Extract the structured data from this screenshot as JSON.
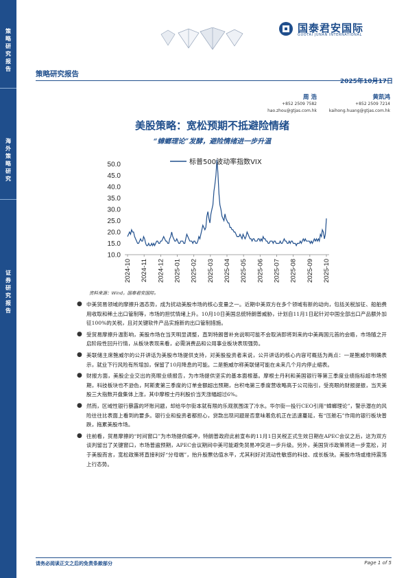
{
  "sidebar": {
    "sections": [
      "策略研究报告",
      "海外策略研究",
      "证券研究报告"
    ]
  },
  "logo": {
    "name_cn": "国泰君安国际",
    "name_en": "GUOTAI JUNAN INTERNATIONAL",
    "brand_color": "#1f4e8c"
  },
  "header": {
    "report_type": "策略研究报告",
    "date": "2025年10月17日"
  },
  "authors": [
    {
      "name": "周 浩",
      "phone": "+852 2509 7582",
      "email": "hao.zhou@gtjas.com.hk"
    },
    {
      "name": "黄凯鸿",
      "phone": "+852 2509 7214",
      "email": "kaihong.huang@gtjas.com.hk"
    }
  ],
  "title": "美股策略：宽松预期不抵避险情绪",
  "subtitle": "“蟑螂理论”发酵，避险情绪进一步升温",
  "chart_data": {
    "type": "line",
    "series": [
      {
        "name": "标普500波动率指数VIX",
        "color": "#1f4e8c",
        "values": [
          18,
          19,
          20,
          19,
          21,
          20,
          20,
          18,
          17,
          16,
          15,
          15,
          16,
          17,
          16,
          16,
          18,
          17,
          15,
          14,
          14,
          15,
          14,
          14,
          15,
          14,
          15,
          14,
          15,
          16,
          16,
          15,
          15,
          16,
          16,
          17,
          18,
          17,
          16,
          16,
          15,
          15,
          17,
          18,
          20,
          18,
          17,
          16,
          16,
          17,
          16,
          15,
          15,
          16,
          16,
          16,
          15,
          15,
          17,
          19,
          18,
          17,
          16,
          16,
          16,
          15,
          16,
          16,
          15,
          15,
          16,
          18,
          17,
          19,
          21,
          23,
          22,
          21,
          22,
          27,
          29,
          26,
          24,
          28,
          30,
          32,
          38,
          41,
          45,
          52,
          46,
          37,
          32,
          30,
          27,
          26,
          25,
          28,
          26,
          25,
          24,
          24,
          22,
          22,
          21,
          21,
          20,
          20,
          19,
          18,
          18,
          18,
          19,
          18,
          17,
          19,
          18,
          17,
          18,
          20,
          19,
          18,
          17,
          17,
          16,
          17,
          17,
          16,
          16,
          16,
          17,
          17,
          16,
          17,
          16,
          18,
          17,
          17,
          16,
          16,
          15,
          15,
          16,
          16,
          16,
          15,
          16,
          16,
          15,
          15,
          15,
          15,
          16,
          15,
          15,
          16,
          17,
          16,
          16,
          15,
          15,
          16,
          15,
          16,
          16,
          15,
          15,
          15,
          14,
          15,
          15,
          15,
          16,
          15,
          16,
          17,
          16,
          17,
          16,
          16,
          16,
          16,
          15,
          16,
          15,
          16,
          17,
          16,
          17,
          16,
          17,
          16,
          19,
          18,
          21,
          20,
          17,
          19,
          26
        ]
      }
    ],
    "x_ticks": [
      "2024-10",
      "2024-11",
      "2024-12",
      "2025-01",
      "2025-02",
      "2025-03",
      "2025-04",
      "2025-05",
      "2025-06",
      "2025-07",
      "2025-08",
      "2025-09",
      "2025-10"
    ],
    "y_ticks": [
      "50.0",
      "45.0",
      "40.0",
      "35.0",
      "30.0",
      "25.0",
      "20.0",
      "15.0",
      "10.0"
    ],
    "ylim": [
      10,
      50
    ],
    "legend": "top"
  },
  "source": "资料来源：Wind，国泰君安国际。",
  "bullets": [
    "中美贸易领域的摩擦升温态势，成为扰动美股市场的核心变量之一。近期中美双方在多个领域有新的动向，包括关税加征、船舶费用收取和稀土出口管制等，市场的担忧情绪上升。10月10日美国总统特朗普威胁，计划自11月1日起针对中国全部出口产品额外加征100%的关税，且对关键软件产品实施新的出口管制措施。",
    "受贸易摩擦升温影响，美股市场在当天明显调整，直到特朗普补充说明可能不会取消即将到来的中美两国元首的会晤，市场随之开启阶段性回升行情，从板块表现来看，必需消费品和公用事业板块表现强势。",
    "美联储主席鲍威尔的公开讲话为美股市场提供支持，对美股投资者来说，公开讲话的核心内容可概括为两点：一是鲍威尔明确表示，就业下行风险有所增加，保留了10月降息的可能。二是鲍威尔称美联储可能在未来几个月内停止缩表。",
    "财报方面，美股企业交出的亮眼业绩报告，为市场提供坚实的基本面根基。摩根士丹利和美国银行等第三季度业绩指标超市场预期，科技板块也不逊色，阿斯麦第三季度的订单金额超出预期，台积电第三季度营收略高于公司指引，受亮眼的财报提振，当天美股三大指数开盘集体上涨，其中摩根士丹利股价当天涨幅超过6%。",
    "然而，区域性银行暴露的坏账问题，却给华尔街本就有限的乐观氛围泼了冷水。华尔街一投行CEO引用“蟑螂理论”，警示潜在的风险往往比表面上看到的要多。银行业和投资者都担心，贷款出现问题是否意味着危机正在迅速蔓延，有“压舱石”作用的银行板块普跌，拖累美股市场。",
    "往前看，贸易摩擦的“时间窗口”为市场提供缓冲，特朗普政府此前宣布的11月1日关税正式生效日期在APEC会议之后，这为双方谈判留出了关键窗口，市场普遍预期，APEC会议期间中美可能避免贸易冲突进一步升级。另外，美国货币政策将进一步宽松，对于美股而言，宽松政策将直接利好“分母端”，抬升股票估值水平，尤其利好对流动性敏感的科技、成长板块。美股市场或维持震荡上行态势。"
  ],
  "footer": {
    "disclaimer": "请务必阅读正文之后的免责条款部分",
    "page": "Page 1 of 5"
  }
}
